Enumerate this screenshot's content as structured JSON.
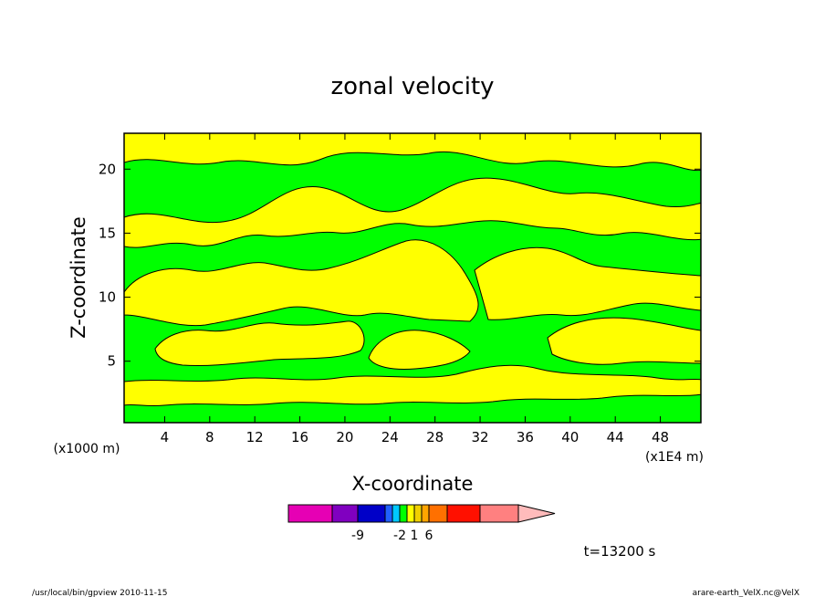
{
  "chart_data": {
    "type": "heatmap",
    "title": "zonal velocity",
    "xlabel": "X-coordinate",
    "ylabel": "Z-coordinate",
    "x_units": "(x1E4 m)",
    "y_units": "(x1000 m)",
    "xlim": [
      0.4,
      51.6
    ],
    "ylim": [
      0.2,
      22.8
    ],
    "x_ticks": [
      "4",
      "8",
      "12",
      "16",
      "20",
      "24",
      "28",
      "32",
      "36",
      "40",
      "44",
      "48"
    ],
    "x_tick_values": [
      4,
      8,
      12,
      16,
      20,
      24,
      28,
      32,
      36,
      40,
      44,
      48
    ],
    "y_ticks": [
      "5",
      "10",
      "15",
      "20"
    ],
    "y_tick_values": [
      5,
      10,
      15,
      20
    ],
    "field_colors": {
      "positive": "#ffff00",
      "negative": "#00ff00"
    },
    "bands_description": "alternating yellow and green bands",
    "colorbar": {
      "colors": [
        "#e600b4",
        "#8000c0",
        "#0000c8",
        "#2060ff",
        "#00c8ff",
        "#00ff00",
        "#ffff00",
        "#f0d000",
        "#ffa500",
        "#ff7000",
        "#ff1000",
        "#ff8080",
        "#ffbbbb"
      ],
      "tick_labels": [
        "-9",
        "-2",
        "1",
        "6"
      ],
      "tick_bin_index": [
        2,
        5,
        7,
        9
      ]
    },
    "time_label": "t=13200 s"
  },
  "footer": {
    "left": "/usr/local/bin/gpview  2010-11-15",
    "right": "arare-earth_VelX.nc@VelX"
  }
}
